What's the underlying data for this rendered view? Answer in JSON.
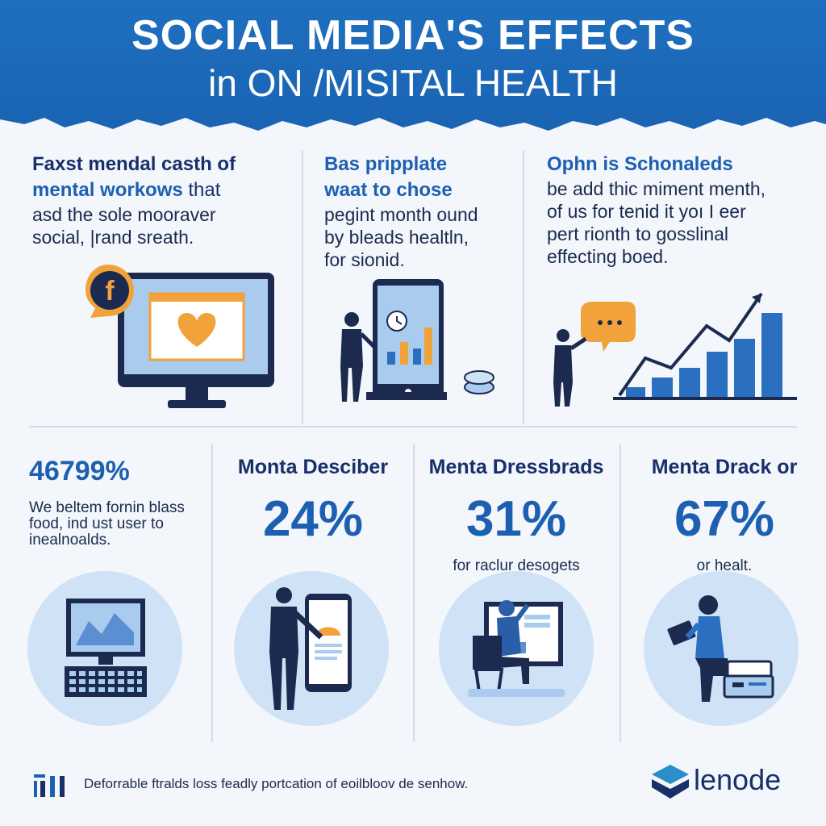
{
  "header": {
    "title_line1": "SOCIAL MEDIA'S EFFECTS",
    "title_line2": "in ON /MISITAL HEALTH"
  },
  "top_sections": [
    {
      "heading_line1": "Faxst mendal casth of",
      "heading_accent": "mental workows",
      "heading_rest": " that",
      "body_lines": [
        "asd the sole mooraver",
        "social, |rand sreath."
      ],
      "icon": "facebook-icon"
    },
    {
      "heading_line1": "Bas pripplate",
      "heading_line2": "waat to chose",
      "body_lines": [
        "pegint month ound",
        "by bleads healtln,",
        "for sionid."
      ]
    },
    {
      "heading_line1": "Ophn is Schonaleds",
      "body_lines": [
        "be add thic miment menth,",
        "of us for tenid it yoı I eer",
        "pert rionth to gosslinal",
        "effecting boed."
      ]
    }
  ],
  "stats": [
    {
      "value": "46799%",
      "sub_lines": [
        "We beltem fornin blass",
        "food, ind ust user to",
        "inealnoalds."
      ]
    },
    {
      "label": "Monta Desciber",
      "value": "24%",
      "sub": ""
    },
    {
      "label": "Menta Dressbrads",
      "value": "31%",
      "sub": "for raclur desogets"
    },
    {
      "label": "Menta Drack or",
      "value": "67%",
      "sub": "or healt."
    }
  ],
  "footer": {
    "text": "Deforrable ftralds loss feadly portcation of eoilbloov de senhow.",
    "brand": "lenode"
  },
  "colors": {
    "header_blue": "#1f6fbf",
    "accent_blue": "#1d5fb0",
    "navy": "#17306a",
    "light_blue": "#cfe2f6",
    "orange": "#f2a23a"
  }
}
